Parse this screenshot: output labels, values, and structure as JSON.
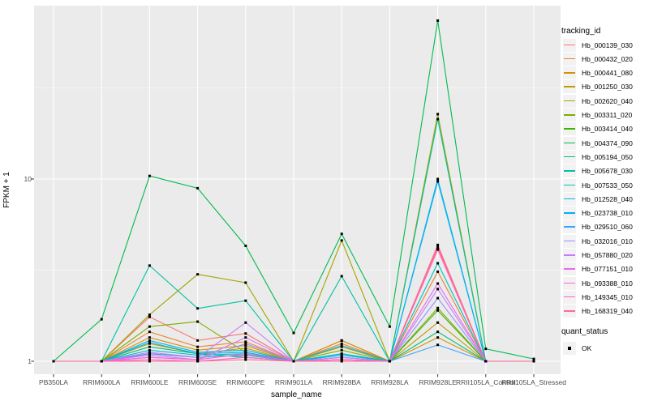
{
  "figure": {
    "background": "#FFFFFF",
    "panel_background": "#EBEBEB",
    "gridline_color": "#FFFFFF",
    "tick_color": "#333333",
    "tick_label_color": "#4D4D4D",
    "marker_color": "#000000",
    "legend_key_fill": "#F2F2F2"
  },
  "axes": {
    "y_title": "FPKM + 1",
    "x_title": "sample_name",
    "y_tick_labels": [
      "10",
      "1"
    ],
    "y_scale": "log10"
  },
  "legend": {
    "tracking_title": "tracking_id",
    "quant_title": "quant_status",
    "quant_item_label": "OK",
    "quant_marker": "black-square"
  },
  "chart_data": {
    "type": "line",
    "title": "",
    "xlabel": "sample_name",
    "ylabel": "FPKM + 1",
    "y_scale": "log10",
    "ylim": [
      0.82,
      88
    ],
    "y_major_ticks": [
      1,
      10
    ],
    "y_minor_ticks": [
      3.162,
      31.62
    ],
    "grid": true,
    "legend_position": "right",
    "marker": "black-square",
    "quant_status_all": "OK",
    "x_categories": [
      "PB350LA",
      "RRIM600LA",
      "RRIM600LE",
      "RRIM600SE",
      "RRIM600PE",
      "RRIM901LA",
      "RRIM928BA",
      "RRIM928LA",
      "RRIM928LE",
      "RRII105LA_Control",
      "RRII105LA_Stressed"
    ],
    "series": [
      {
        "name": "Hb_000139_030",
        "color": "#F8766D",
        "values": [
          1,
          1,
          1.75,
          1.3,
          1.42,
          1,
          1.3,
          1,
          4.35,
          1,
          1
        ]
      },
      {
        "name": "Hb_000432_020",
        "color": "#EA8331",
        "values": [
          1,
          1,
          1.45,
          1.2,
          1.28,
          1,
          1.25,
          1,
          3.1,
          1,
          1
        ]
      },
      {
        "name": "Hb_000441_080",
        "color": "#D89000",
        "values": [
          1,
          1,
          1.35,
          1.15,
          1.22,
          1,
          1.3,
          1,
          1.35,
          1,
          1
        ]
      },
      {
        "name": "Hb_001250_030",
        "color": "#C09B00",
        "values": [
          1,
          1,
          1.25,
          1.1,
          1.18,
          1,
          1.2,
          1,
          1.63,
          1,
          1
        ]
      },
      {
        "name": "Hb_002620_040",
        "color": "#A3A500",
        "values": [
          1,
          1,
          1.8,
          3.0,
          2.7,
          1,
          4.6,
          1,
          22.7,
          1,
          1
        ]
      },
      {
        "name": "Hb_003311_020",
        "color": "#7CAE00",
        "values": [
          1,
          1,
          1.55,
          1.65,
          1.12,
          1,
          1.15,
          1,
          1.96,
          1,
          1
        ]
      },
      {
        "name": "Hb_003414_040",
        "color": "#39B600",
        "values": [
          1,
          1,
          1.1,
          1.05,
          1.08,
          1,
          1.1,
          1,
          1.9,
          1,
          1
        ]
      },
      {
        "name": "Hb_004374_090",
        "color": "#00BB4E",
        "values": [
          1,
          1.7,
          10.4,
          8.9,
          4.3,
          1.43,
          5.0,
          1.55,
          74,
          1.17,
          1.03
        ]
      },
      {
        "name": "Hb_005194_050",
        "color": "#00BF7D",
        "values": [
          1,
          1,
          1.2,
          1.1,
          1.05,
          1,
          1.05,
          1,
          1.45,
          1,
          1
        ]
      },
      {
        "name": "Hb_005678_030",
        "color": "#00C1A3",
        "values": [
          1,
          1,
          3.35,
          1.95,
          2.15,
          1,
          2.93,
          1,
          21.3,
          1,
          1
        ]
      },
      {
        "name": "Hb_007533_050",
        "color": "#00BFC4",
        "values": [
          1,
          1,
          1.15,
          1.08,
          1.1,
          1,
          1.08,
          1,
          3.45,
          1,
          1
        ]
      },
      {
        "name": "Hb_012528_040",
        "color": "#00BAE0",
        "values": [
          1,
          1,
          1.3,
          1.12,
          1.15,
          1,
          1.22,
          1,
          10.0,
          1,
          1
        ]
      },
      {
        "name": "Hb_023738_010",
        "color": "#00B0F6",
        "values": [
          1,
          1,
          1.27,
          1.1,
          1.12,
          1,
          1.1,
          1,
          9.7,
          1,
          1
        ]
      },
      {
        "name": "Hb_029510_060",
        "color": "#35A2FF",
        "values": [
          1,
          1,
          1.1,
          1.05,
          1.08,
          1,
          1.05,
          1,
          1.23,
          1,
          1
        ]
      },
      {
        "name": "Hb_032016_010",
        "color": "#9590FF",
        "values": [
          1,
          1,
          1.05,
          1.02,
          1.25,
          1,
          1.02,
          1,
          2.22,
          1,
          1
        ]
      },
      {
        "name": "Hb_057880_020",
        "color": "#C77CFF",
        "values": [
          1,
          1,
          1.12,
          1.05,
          1.63,
          1,
          1.05,
          1,
          2.49,
          1,
          1
        ]
      },
      {
        "name": "Hb_077151_010",
        "color": "#E76BF3",
        "values": [
          1,
          1,
          1.08,
          1.02,
          1.35,
          1,
          1.02,
          1,
          2.67,
          1,
          1
        ]
      },
      {
        "name": "Hb_093388_010",
        "color": "#FA62DB",
        "values": [
          1,
          1,
          1.05,
          1.02,
          1.1,
          1,
          1.02,
          1,
          4.1,
          1,
          1
        ]
      },
      {
        "name": "Hb_149345_010",
        "color": "#FF62BC",
        "values": [
          1,
          1,
          1.02,
          1.0,
          1.05,
          1,
          1.02,
          1,
          4.25,
          1,
          1
        ]
      },
      {
        "name": "Hb_168319_040",
        "color": "#FF6A98",
        "values": [
          1,
          1,
          1.0,
          1.0,
          1.02,
          1,
          1.0,
          1,
          4.15,
          1,
          1
        ]
      }
    ]
  }
}
